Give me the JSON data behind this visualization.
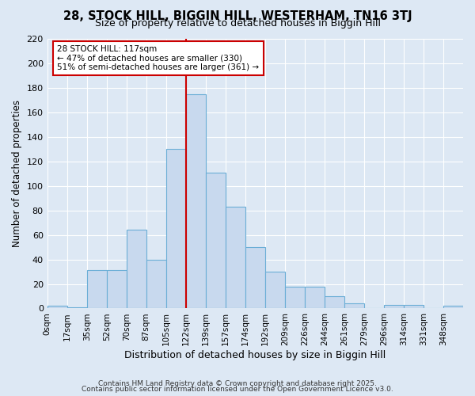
{
  "title": "28, STOCK HILL, BIGGIN HILL, WESTERHAM, TN16 3TJ",
  "subtitle": "Size of property relative to detached houses in Biggin Hill",
  "xlabel": "Distribution of detached houses by size in Biggin Hill",
  "ylabel": "Number of detached properties",
  "bin_labels": [
    "0sqm",
    "17sqm",
    "35sqm",
    "52sqm",
    "70sqm",
    "87sqm",
    "105sqm",
    "122sqm",
    "139sqm",
    "157sqm",
    "174sqm",
    "192sqm",
    "209sqm",
    "226sqm",
    "244sqm",
    "261sqm",
    "279sqm",
    "296sqm",
    "314sqm",
    "331sqm",
    "348sqm"
  ],
  "bar_values": [
    2,
    1,
    31,
    31,
    64,
    40,
    130,
    175,
    111,
    83,
    50,
    30,
    18,
    18,
    10,
    4,
    0,
    3,
    3,
    0,
    2
  ],
  "bar_color": "#c8d9ee",
  "bar_edge_color": "#6baed6",
  "subject_line_color": "#cc0000",
  "annotation_box_color": "#ffffff",
  "annotation_box_edge_color": "#cc0000",
  "ylim": [
    0,
    220
  ],
  "yticks": [
    0,
    20,
    40,
    60,
    80,
    100,
    120,
    140,
    160,
    180,
    200,
    220
  ],
  "bg_color": "#dde8f4",
  "grid_color": "#ffffff",
  "footer1": "Contains HM Land Registry data © Crown copyright and database right 2025.",
  "footer2": "Contains public sector information licensed under the Open Government Licence v3.0."
}
